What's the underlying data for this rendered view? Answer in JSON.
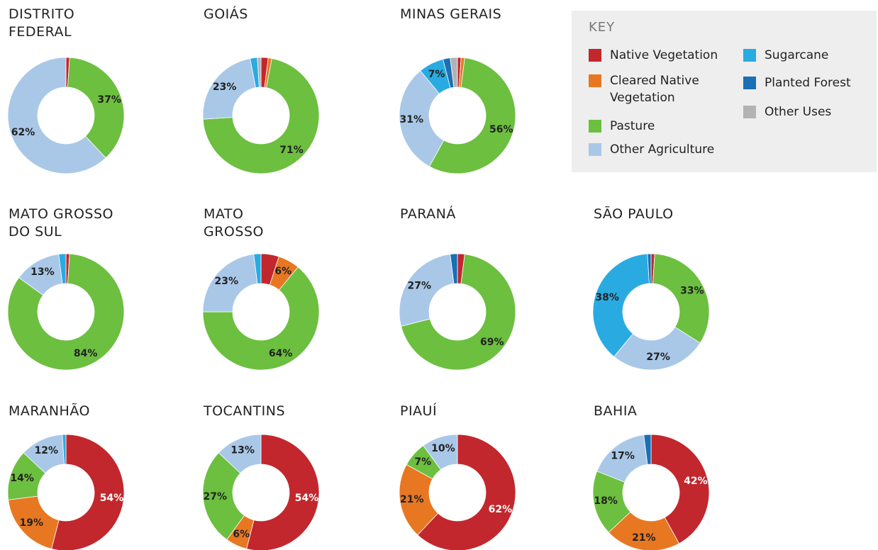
{
  "legend": {
    "title": "KEY",
    "categories": [
      "Native Vegetation",
      "Cleared Native\nVegetation",
      "Pasture",
      "Other Agriculture",
      "Sugarcane",
      "Planted Forest",
      "Other Uses"
    ],
    "colors": [
      "#c1272d",
      "#e87722",
      "#6cbf3f",
      "#a9c8e8",
      "#29abe2",
      "#1a6fb5",
      "#b3b3b3"
    ]
  },
  "chart_data": [
    {
      "type": "donut",
      "title": "DISTRITO\nFEDERAL",
      "values": [
        1,
        0,
        37,
        62,
        0,
        0,
        0
      ],
      "value_labels": [
        null,
        null,
        "37%",
        "62%",
        null,
        null,
        null
      ]
    },
    {
      "type": "donut",
      "title": "GOIÁS",
      "values": [
        2,
        1,
        71,
        23,
        2,
        0,
        1
      ],
      "value_labels": [
        null,
        null,
        "71%",
        "23%",
        null,
        null,
        null
      ]
    },
    {
      "type": "donut",
      "title": "MINAS GERAIS",
      "values": [
        1,
        1,
        56,
        31,
        7,
        2,
        2
      ],
      "value_labels": [
        null,
        null,
        "56%",
        "31%",
        "7%",
        null,
        null
      ]
    },
    {
      "type": "donut",
      "title": "MATO GROSSO\nDO SUL",
      "values": [
        1,
        0,
        84,
        13,
        2,
        0,
        0
      ],
      "value_labels": [
        null,
        null,
        "84%",
        "13%",
        null,
        null,
        null
      ]
    },
    {
      "type": "donut",
      "title": "MATO\nGROSSO",
      "values": [
        5,
        6,
        64,
        23,
        2,
        0,
        0
      ],
      "value_labels": [
        null,
        "6%",
        "64%",
        "23%",
        null,
        null,
        null
      ]
    },
    {
      "type": "donut",
      "title": "PARANÁ",
      "values": [
        2,
        0,
        69,
        27,
        0,
        2,
        0
      ],
      "value_labels": [
        null,
        null,
        "69%",
        "27%",
        null,
        null,
        null
      ]
    },
    {
      "type": "donut",
      "title": "SÃO PAULO",
      "values": [
        1,
        0,
        33,
        27,
        38,
        1,
        0
      ],
      "value_labels": [
        null,
        null,
        "33%",
        "27%",
        "38%",
        null,
        null
      ]
    },
    {
      "type": "donut",
      "title": "MARANHÃO",
      "values": [
        54,
        19,
        14,
        12,
        1,
        0,
        0
      ],
      "value_labels": [
        "54%",
        "19%",
        "14%",
        "12%",
        null,
        null,
        null
      ]
    },
    {
      "type": "donut",
      "title": "TOCANTINS",
      "values": [
        54,
        6,
        27,
        13,
        0,
        0,
        0
      ],
      "value_labels": [
        "54%",
        "6%",
        "27%",
        "13%",
        null,
        null,
        null
      ]
    },
    {
      "type": "donut",
      "title": "PIAUÍ",
      "values": [
        62,
        21,
        7,
        10,
        0,
        0,
        0
      ],
      "value_labels": [
        "62%",
        "21%",
        "7%",
        "10%",
        null,
        null,
        null
      ]
    },
    {
      "type": "donut",
      "title": "BAHIA",
      "values": [
        42,
        21,
        18,
        17,
        0,
        2,
        0
      ],
      "value_labels": [
        "42%",
        "21%",
        "18%",
        "17%",
        null,
        null,
        null
      ]
    }
  ]
}
